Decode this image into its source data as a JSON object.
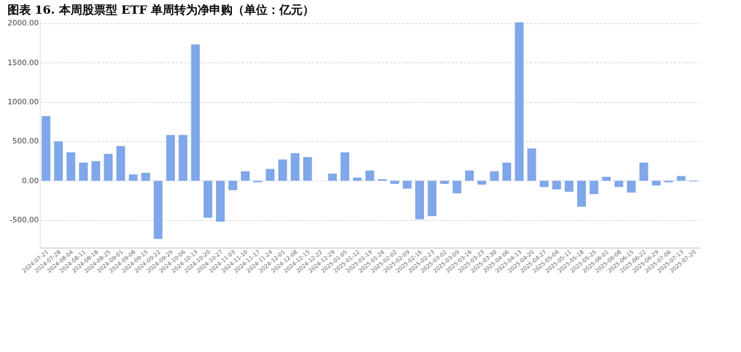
{
  "chart_data": {
    "type": "bar",
    "title": "图表 16. 本周股票型 ETF 单周转为净申购（单位：亿元）",
    "categories": [
      "2024-07-21",
      "2024-07-28",
      "2024-08-04",
      "2024-08-11",
      "2024-08-18",
      "2024-08-25",
      "2024-09-01",
      "2024-09-08",
      "2024-09-15",
      "2024-09-22",
      "2024-09-29",
      "2024-10-06",
      "2024-10-13",
      "2024-10-20",
      "2024-10-27",
      "2024-11-03",
      "2024-11-10",
      "2024-11-17",
      "2024-11-24",
      "2024-12-01",
      "2024-12-08",
      "2024-12-15",
      "2024-12-22",
      "2024-12-29",
      "2025-01-05",
      "2025-01-12",
      "2025-01-19",
      "2025-01-26",
      "2025-02-02",
      "2025-02-09",
      "2025-02-16",
      "2025-02-23",
      "2025-03-02",
      "2025-03-09",
      "2025-03-16",
      "2025-03-23",
      "2025-03-30",
      "2025-04-06",
      "2025-04-13",
      "2025-04-20",
      "2025-04-27",
      "2025-05-04",
      "2025-05-11",
      "2025-05-18",
      "2025-05-25",
      "2025-06-01",
      "2025-06-08",
      "2025-06-15",
      "2025-06-22",
      "2025-06-29",
      "2025-07-06",
      "2025-07-13",
      "2025-07-20"
    ],
    "values": [
      820,
      500,
      360,
      230,
      250,
      340,
      440,
      80,
      100,
      -740,
      580,
      580,
      1730,
      -470,
      -520,
      -120,
      120,
      -20,
      150,
      270,
      350,
      300,
      0,
      90,
      360,
      40,
      130,
      20,
      -40,
      -100,
      -490,
      -450,
      -40,
      -160,
      130,
      -50,
      120,
      230,
      2010,
      410,
      -80,
      -110,
      -140,
      -330,
      -170,
      50,
      -80,
      -150,
      230,
      -60,
      -20,
      60,
      -10
    ],
    "color": "#7fa7e9",
    "ylim": [
      -850,
      2050
    ],
    "yticks": [
      {
        "value": -500,
        "label": "-500.00"
      },
      {
        "value": 0,
        "label": "0.00"
      },
      {
        "value": 500,
        "label": "500.00"
      },
      {
        "value": 1000,
        "label": "1000.00"
      },
      {
        "value": 1500,
        "label": "1500.00"
      },
      {
        "value": 2000,
        "label": "2000.00"
      }
    ],
    "grid": "y"
  }
}
